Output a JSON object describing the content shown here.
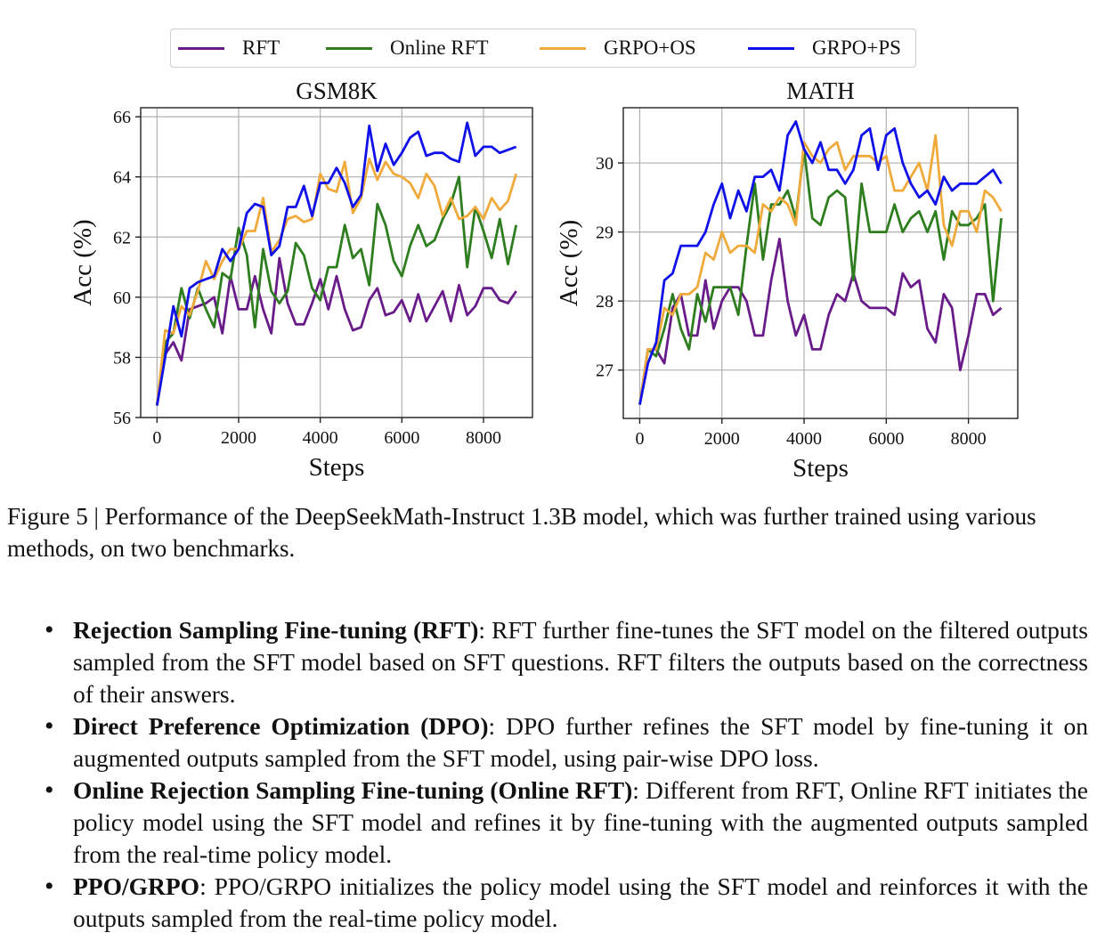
{
  "legend": [
    {
      "label": "RFT",
      "color": "#6a1b8a"
    },
    {
      "label": "Online RFT",
      "color": "#2e7d1f"
    },
    {
      "label": "GRPO+OS",
      "color": "#f0aa3c"
    },
    {
      "label": "GRPO+PS",
      "color": "#1010e8"
    }
  ],
  "chart_data": [
    {
      "type": "line",
      "title": "GSM8K",
      "xlabel": "Steps",
      "ylabel": "Acc (%)",
      "xlim": [
        -400,
        9200
      ],
      "ylim": [
        56,
        66.3
      ],
      "xticks": [
        0,
        2000,
        4000,
        6000,
        8000
      ],
      "yticks": [
        56,
        58,
        60,
        62,
        64,
        66
      ],
      "grid": true,
      "x": [
        0,
        200,
        400,
        600,
        800,
        1000,
        1200,
        1400,
        1600,
        1800,
        2000,
        2200,
        2400,
        2600,
        2800,
        3000,
        3200,
        3400,
        3600,
        3800,
        4000,
        4200,
        4400,
        4600,
        4800,
        5000,
        5200,
        5400,
        5600,
        5800,
        6000,
        6200,
        6400,
        6600,
        6800,
        7000,
        7200,
        7400,
        7600,
        7800,
        8000,
        8200,
        8400,
        8600,
        8800
      ],
      "series": [
        {
          "name": "RFT",
          "color": "#6a1b8a",
          "values": [
            56.4,
            58.1,
            58.5,
            57.9,
            59.6,
            59.7,
            59.8,
            60.0,
            58.8,
            60.7,
            59.6,
            59.6,
            60.7,
            59.6,
            58.8,
            61.3,
            59.8,
            59.1,
            59.1,
            59.8,
            60.6,
            59.6,
            60.7,
            59.6,
            58.9,
            59.0,
            59.9,
            60.3,
            59.4,
            59.5,
            59.9,
            59.2,
            60.1,
            59.2,
            59.7,
            60.2,
            59.2,
            60.4,
            59.4,
            59.7,
            60.3,
            60.3,
            59.9,
            59.8,
            60.2
          ]
        },
        {
          "name": "Online RFT",
          "color": "#2e7d1f",
          "values": [
            56.4,
            58.5,
            58.8,
            60.3,
            59.3,
            60.3,
            59.6,
            59.0,
            60.8,
            60.6,
            62.3,
            61.4,
            59.0,
            61.6,
            60.2,
            59.8,
            60.2,
            61.8,
            61.4,
            60.3,
            59.9,
            61.0,
            61.0,
            62.4,
            61.3,
            61.6,
            60.4,
            63.1,
            62.4,
            61.2,
            60.7,
            61.7,
            62.4,
            61.7,
            61.9,
            62.6,
            63.1,
            64.0,
            61.0,
            63.0,
            62.2,
            61.3,
            62.6,
            61.1,
            62.4
          ]
        },
        {
          "name": "GRPO+OS",
          "color": "#f0aa3c",
          "values": [
            56.4,
            58.9,
            58.8,
            59.7,
            59.4,
            60.2,
            61.2,
            60.6,
            61.2,
            61.6,
            61.6,
            62.2,
            62.2,
            63.3,
            61.5,
            61.9,
            62.6,
            62.7,
            62.5,
            62.6,
            64.1,
            63.6,
            63.5,
            64.5,
            62.8,
            63.3,
            64.6,
            63.9,
            64.5,
            64.1,
            64.0,
            63.8,
            63.3,
            64.1,
            63.7,
            62.7,
            63.3,
            62.6,
            62.7,
            63.0,
            62.6,
            63.3,
            62.9,
            63.2,
            64.1
          ]
        },
        {
          "name": "GRPO+PS",
          "color": "#1010e8",
          "values": [
            56.4,
            58.0,
            59.7,
            58.7,
            60.3,
            60.5,
            60.6,
            60.7,
            61.6,
            61.2,
            61.6,
            62.8,
            63.1,
            63.0,
            61.4,
            61.7,
            63.0,
            63.0,
            63.7,
            62.7,
            63.8,
            63.8,
            64.3,
            63.8,
            63.0,
            63.4,
            65.7,
            64.2,
            65.1,
            64.4,
            64.8,
            65.3,
            65.5,
            64.7,
            64.8,
            64.8,
            64.6,
            64.5,
            65.8,
            64.7,
            65.0,
            65.0,
            64.8,
            64.9,
            65.0
          ]
        }
      ]
    },
    {
      "type": "line",
      "title": "MATH",
      "xlabel": "Steps",
      "ylabel": "Acc (%)",
      "xlim": [
        -400,
        9200
      ],
      "ylim": [
        26.3,
        30.8
      ],
      "xticks": [
        0,
        2000,
        4000,
        6000,
        8000
      ],
      "yticks": [
        27,
        28,
        29,
        30
      ],
      "grid": true,
      "x": [
        0,
        200,
        400,
        600,
        800,
        1000,
        1200,
        1400,
        1600,
        1800,
        2000,
        2200,
        2400,
        2600,
        2800,
        3000,
        3200,
        3400,
        3600,
        3800,
        4000,
        4200,
        4400,
        4600,
        4800,
        5000,
        5200,
        5400,
        5600,
        5800,
        6000,
        6200,
        6400,
        6600,
        6800,
        7000,
        7200,
        7400,
        7600,
        7800,
        8000,
        8200,
        8400,
        8600,
        8800
      ],
      "series": [
        {
          "name": "RFT",
          "color": "#6a1b8a",
          "values": [
            26.5,
            27.3,
            27.3,
            27.1,
            27.9,
            28.1,
            27.5,
            27.5,
            28.3,
            27.6,
            28.0,
            28.2,
            28.2,
            28.0,
            27.5,
            27.5,
            28.3,
            28.9,
            28.0,
            27.5,
            27.8,
            27.3,
            27.3,
            27.8,
            28.1,
            28.0,
            28.4,
            28.0,
            27.9,
            27.9,
            27.9,
            27.8,
            28.4,
            28.2,
            28.3,
            27.6,
            27.4,
            28.1,
            27.9,
            27.0,
            27.5,
            28.1,
            28.1,
            27.8,
            27.9
          ]
        },
        {
          "name": "Online RFT",
          "color": "#2e7d1f",
          "values": [
            26.5,
            27.3,
            27.2,
            27.6,
            28.1,
            27.6,
            27.3,
            28.1,
            27.7,
            28.2,
            28.2,
            28.2,
            27.8,
            28.8,
            29.7,
            28.6,
            29.4,
            29.4,
            29.6,
            29.2,
            30.2,
            29.2,
            29.1,
            29.5,
            29.6,
            29.5,
            28.3,
            29.7,
            29.0,
            29.0,
            29.0,
            29.4,
            29.0,
            29.2,
            29.3,
            29.0,
            29.3,
            28.6,
            29.3,
            29.1,
            29.1,
            29.2,
            29.4,
            28.0,
            29.2
          ]
        },
        {
          "name": "GRPO+OS",
          "color": "#f0aa3c",
          "values": [
            26.5,
            27.3,
            27.3,
            27.9,
            27.8,
            28.1,
            28.1,
            28.2,
            28.7,
            28.6,
            29.0,
            28.7,
            28.8,
            28.8,
            28.7,
            29.4,
            29.3,
            29.5,
            29.4,
            29.1,
            30.3,
            30.1,
            30.0,
            30.2,
            30.3,
            29.9,
            30.1,
            30.1,
            30.1,
            30.0,
            30.1,
            29.6,
            29.6,
            29.8,
            30.0,
            29.6,
            30.4,
            29.1,
            28.8,
            29.3,
            29.3,
            29.0,
            29.6,
            29.5,
            29.3
          ]
        },
        {
          "name": "GRPO+PS",
          "color": "#1010e8",
          "values": [
            26.5,
            27.1,
            27.4,
            28.3,
            28.4,
            28.8,
            28.8,
            28.8,
            29.0,
            29.4,
            29.7,
            29.2,
            29.6,
            29.3,
            29.8,
            29.8,
            29.9,
            29.6,
            30.4,
            30.6,
            30.2,
            30.0,
            30.3,
            29.9,
            29.9,
            29.7,
            29.9,
            30.4,
            30.5,
            29.9,
            30.4,
            30.5,
            30.0,
            29.7,
            29.5,
            29.6,
            29.4,
            29.8,
            29.6,
            29.7,
            29.7,
            29.7,
            29.8,
            29.9,
            29.7
          ]
        }
      ]
    }
  ],
  "caption": "Figure 5 | Performance of the DeepSeekMath-Instruct 1.3B model, which was further trained using various methods, on two benchmarks.",
  "bullets": [
    {
      "term": "Rejection Sampling Fine-tuning (RFT)",
      "text": ": RFT further fine-tunes the SFT model on the filtered outputs sampled from the SFT model based on SFT questions. RFT filters the outputs based on the correctness of their answers."
    },
    {
      "term": "Direct Preference Optimization (DPO)",
      "text": ": DPO further refines the SFT model by fine-tuning it on augmented outputs sampled from the SFT model, using pair-wise DPO loss."
    },
    {
      "term": "Online Rejection Sampling Fine-tuning (Online RFT)",
      "text": ": Different from RFT, Online RFT initiates the policy model using the SFT model and refines it by fine-tuning with the augmented outputs sampled from the real-time policy model."
    },
    {
      "term": "PPO/GRPO",
      "text": ": PPO/GRPO initializes the policy model using the SFT model and reinforces it with the outputs sampled from the real-time policy model."
    }
  ]
}
